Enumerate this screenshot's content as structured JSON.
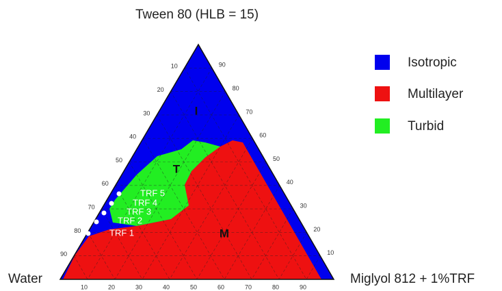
{
  "diagram": {
    "apex_label": "Tween 80 (HLB = 15)",
    "left_label": "Water",
    "right_label": "Miglyol 812 + 1%TRF",
    "legend": [
      "Isotropic",
      "Multilayer",
      "Turbid"
    ],
    "regions": [
      "I",
      "T",
      "M"
    ],
    "points": [
      "TRF 1",
      "TRF 2",
      "TRF 3",
      "TRF 4",
      "TRF 5"
    ],
    "left_ticks": [
      10,
      20,
      30,
      40,
      50,
      60,
      70,
      80,
      90
    ],
    "right_ticks": [
      90,
      80,
      70,
      60,
      50,
      40,
      30,
      20,
      10
    ],
    "bottom_ticks": [
      10,
      20,
      30,
      40,
      50,
      60,
      70,
      80,
      90
    ]
  }
}
